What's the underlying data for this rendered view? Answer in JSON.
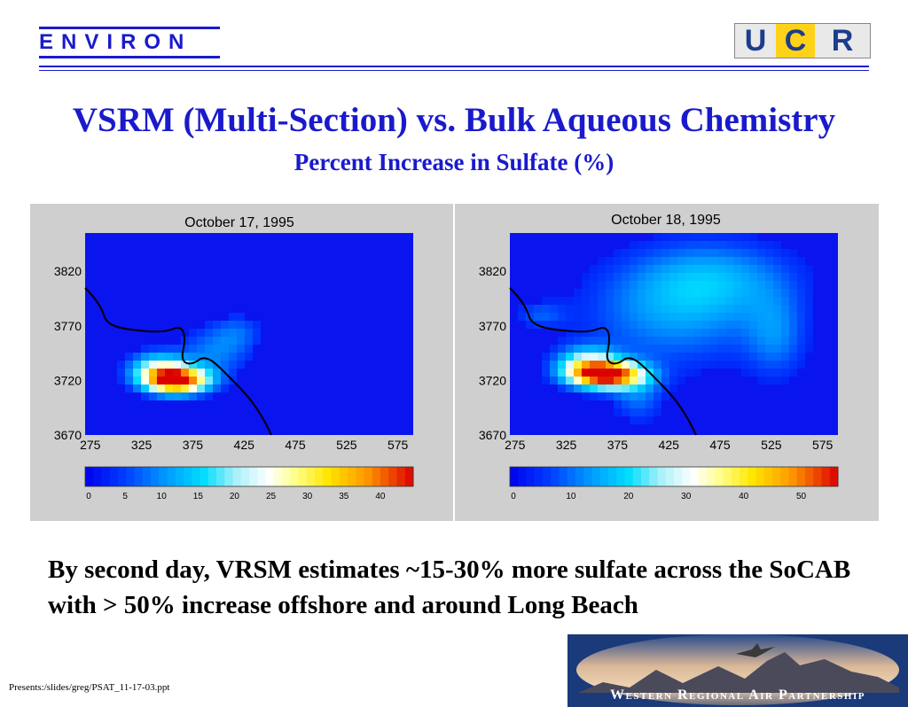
{
  "header": {
    "left_logo_text": "ENVIRON",
    "right_logo": {
      "u": "U",
      "c": "C",
      "r": "R"
    }
  },
  "slide": {
    "title": "VSRM (Multi-Section) vs. Bulk Aqueous Chemistry",
    "subtitle": "Percent Increase in Sulfate (%)",
    "body": "By second day, VRSM estimates ~15-30% more sulfate across the SoCAB with > 50% increase offshore and around Long Beach",
    "footer": "Presents:/slides/greg/PSAT_11-17-03.ppt",
    "banner_text": "Western Regional Air Partnership"
  },
  "chart_data": [
    {
      "type": "heatmap",
      "title": "October 17, 1995",
      "x_ticks": [
        "275",
        "325",
        "375",
        "425",
        "475",
        "525",
        "575"
      ],
      "y_ticks": [
        "3820",
        "3770",
        "3720",
        "3670"
      ],
      "xlim": [
        270,
        590
      ],
      "ylim": [
        3670,
        3855
      ],
      "colorbar_ticks": [
        "0",
        "5",
        "10",
        "15",
        "20",
        "25",
        "30",
        "35",
        "40"
      ],
      "colorbar_range": [
        0,
        45
      ]
    },
    {
      "type": "heatmap",
      "title": "October 18, 1995",
      "x_ticks": [
        "275",
        "325",
        "375",
        "425",
        "475",
        "525",
        "575"
      ],
      "y_ticks": [
        "3820",
        "3770",
        "3720",
        "3670"
      ],
      "xlim": [
        270,
        590
      ],
      "ylim": [
        3670,
        3855
      ],
      "colorbar_ticks": [
        "0",
        "10",
        "20",
        "30",
        "40",
        "50"
      ],
      "colorbar_range": [
        0,
        57
      ]
    }
  ],
  "colors": {
    "brand_blue": "#1a1acc",
    "map_background": "#0a14ee",
    "figure_background": "#cfcfcf"
  }
}
